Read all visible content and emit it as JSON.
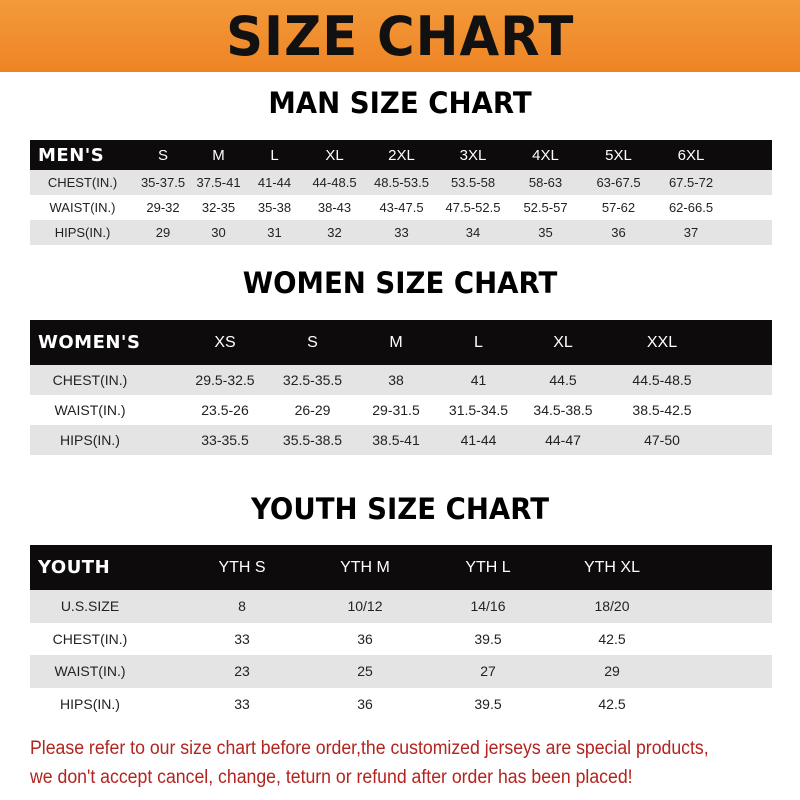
{
  "banner_title": "SIZE CHART",
  "sections": {
    "man": {
      "title": "MAN SIZE CHART",
      "header": [
        "MEN'S",
        "S",
        "M",
        "L",
        "XL",
        "2XL",
        "3XL",
        "4XL",
        "5XL",
        "6XL"
      ],
      "rows": [
        [
          "CHEST(IN.)",
          "35-37.5",
          "37.5-41",
          "41-44",
          "44-48.5",
          "48.5-53.5",
          "53.5-58",
          "58-63",
          "63-67.5",
          "67.5-72"
        ],
        [
          "WAIST(IN.)",
          "29-32",
          "32-35",
          "35-38",
          "38-43",
          "43-47.5",
          "47.5-52.5",
          "52.5-57",
          "57-62",
          "62-66.5"
        ],
        [
          "HIPS(IN.)",
          "29",
          "30",
          "31",
          "32",
          "33",
          "34",
          "35",
          "36",
          "37"
        ]
      ]
    },
    "women": {
      "title": "WOMEN SIZE CHART",
      "header": [
        "WOMEN'S",
        "XS",
        "S",
        "M",
        "L",
        "XL",
        "XXL"
      ],
      "rows": [
        [
          "CHEST(IN.)",
          "29.5-32.5",
          "32.5-35.5",
          "38",
          "41",
          "44.5",
          "44.5-48.5"
        ],
        [
          "WAIST(IN.)",
          "23.5-26",
          "26-29",
          "29-31.5",
          "31.5-34.5",
          "34.5-38.5",
          "38.5-42.5"
        ],
        [
          "HIPS(IN.)",
          "33-35.5",
          "35.5-38.5",
          "38.5-41",
          "41-44",
          "44-47",
          "47-50"
        ]
      ]
    },
    "youth": {
      "title": "YOUTH SIZE CHART",
      "header": [
        "YOUTH",
        "YTH S",
        "YTH M",
        "YTH L",
        "YTH XL"
      ],
      "rows": [
        [
          "U.S.SIZE",
          "8",
          "10/12",
          "14/16",
          "18/20"
        ],
        [
          "CHEST(IN.)",
          "33",
          "36",
          "39.5",
          "42.5"
        ],
        [
          "WAIST(IN.)",
          "23",
          "25",
          "27",
          "29"
        ],
        [
          "HIPS(IN.)",
          "33",
          "36",
          "39.5",
          "42.5"
        ]
      ]
    }
  },
  "note": {
    "line1": "Please refer to our size chart before order,the customized jerseys are special products,",
    "line2": "we don't accept cancel, change, teturn or refund after order has been placed!"
  },
  "colors": {
    "banner": "#ee8424",
    "header_row": "#0d0b0b",
    "stripe": "#e4e4e4",
    "note": "#b3231f"
  }
}
